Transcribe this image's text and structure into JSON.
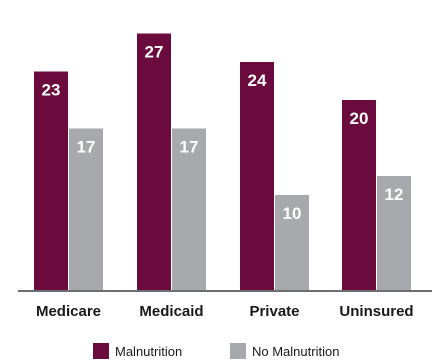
{
  "chart_data": {
    "type": "bar",
    "categories": [
      "Medicare",
      "Medicaid",
      "Private",
      "Uninsured"
    ],
    "series": [
      {
        "name": "Malnutrition",
        "values": [
          23,
          27,
          24,
          20
        ],
        "color": "#6b0a3d"
      },
      {
        "name": "No Malnutrition",
        "values": [
          17,
          17,
          10,
          12
        ],
        "color": "#a7a9ac"
      }
    ],
    "ylim": [
      0,
      29
    ],
    "grid": false,
    "legend": "bottom-center"
  }
}
